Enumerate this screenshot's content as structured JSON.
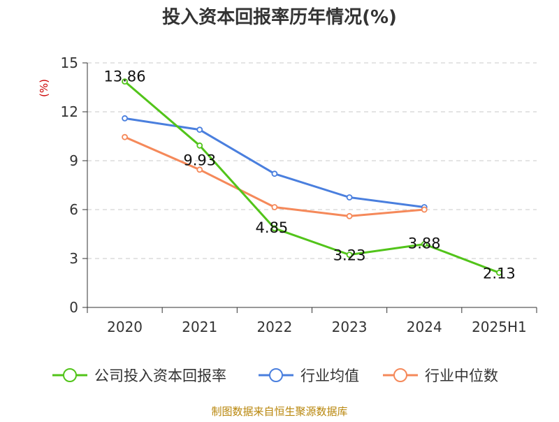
{
  "chart_data": {
    "type": "line",
    "title": "投入资本回报率历年情况(%)",
    "ylabel": "(%)",
    "categories": [
      "2020",
      "2021",
      "2022",
      "2023",
      "2024",
      "2025H1"
    ],
    "ylim": [
      0,
      15
    ],
    "yticks": [
      0,
      3,
      6,
      9,
      12,
      15
    ],
    "grid": true,
    "legend_position": "bottom",
    "series": [
      {
        "name": "公司投入资本回报率",
        "color": "#52c41a",
        "values": [
          13.86,
          9.93,
          4.85,
          3.23,
          3.88,
          2.13
        ],
        "labels": [
          "13.86",
          "9.93",
          "4.85",
          "3.23",
          "3.88",
          "2.13"
        ]
      },
      {
        "name": "行业均值",
        "color": "#4a7fde",
        "values": [
          11.6,
          10.9,
          8.2,
          6.75,
          6.15,
          null
        ]
      },
      {
        "name": "行业中位数",
        "color": "#f5895a",
        "values": [
          10.45,
          8.45,
          6.15,
          5.6,
          6.0,
          null
        ]
      }
    ]
  },
  "source": "制图数据来自恒生聚源数据库"
}
